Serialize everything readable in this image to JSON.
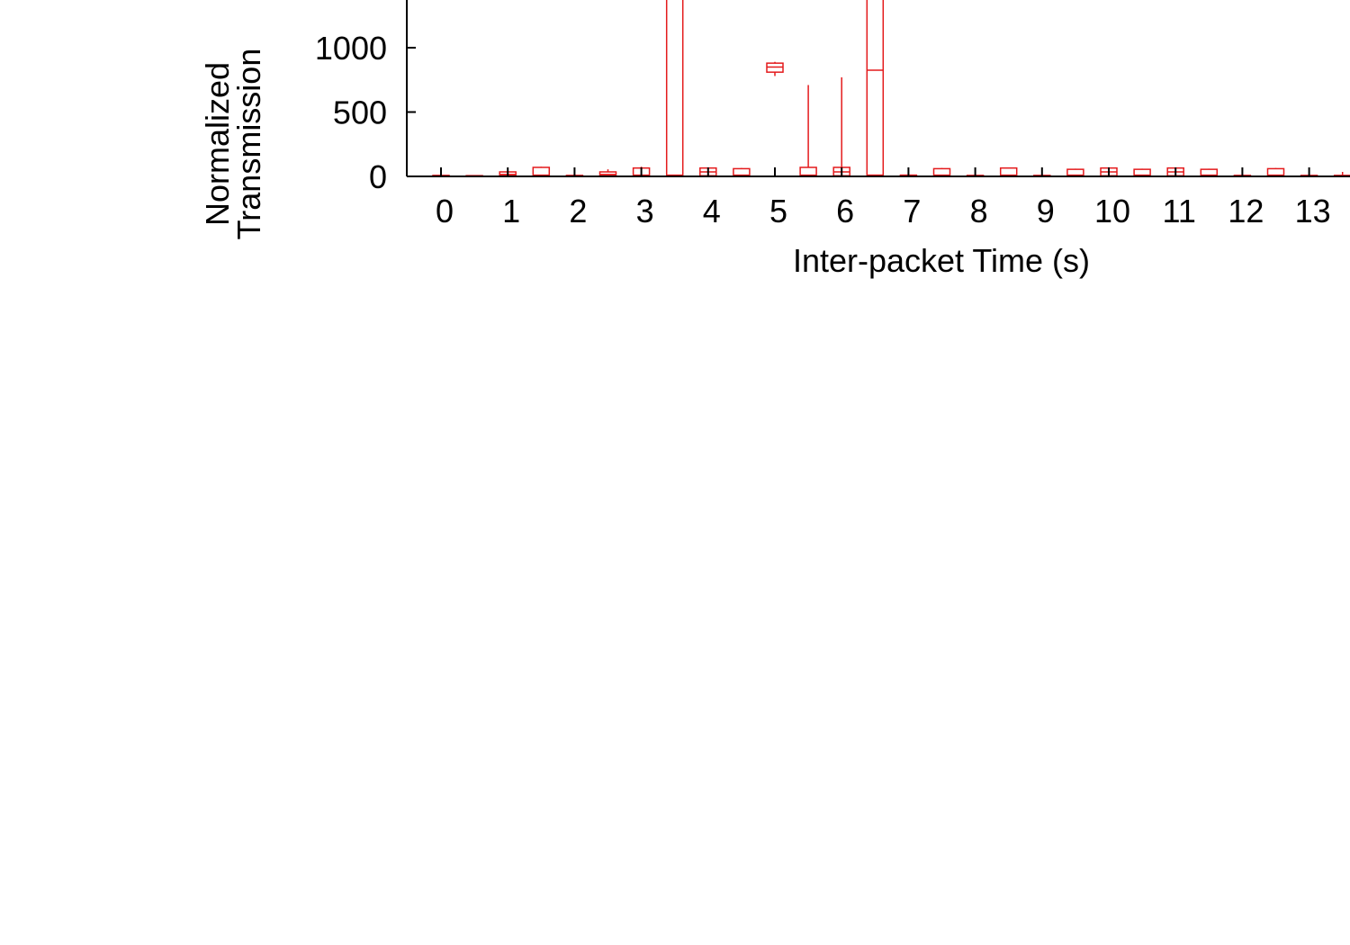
{
  "chart_data": {
    "type": "boxplot",
    "xlabel": "Inter-packet Time (s)",
    "ylabel_lines": [
      "Normalized",
      "Transmission"
    ],
    "x_ticks": [
      0,
      1,
      2,
      3,
      4,
      5,
      6,
      7,
      8,
      9,
      10,
      11,
      12,
      13
    ],
    "y_ticks": [
      0,
      500,
      1000
    ],
    "ylim": [
      0,
      1400
    ],
    "xlim": [
      -0.6,
      13.6
    ],
    "colors": {
      "box": "#e41a1c",
      "axis": "#000000"
    },
    "series": [
      {
        "x": 0.0,
        "min": 0,
        "q1": 0,
        "median": 3,
        "q3": 8,
        "max": 12
      },
      {
        "x": 0.5,
        "min": 0,
        "q1": 0,
        "median": 3,
        "q3": 6,
        "max": 10
      },
      {
        "x": 1.0,
        "min": 0,
        "q1": 5,
        "median": 15,
        "q3": 35,
        "max": 40
      },
      {
        "x": 1.5,
        "min": 0,
        "q1": 5,
        "median": 10,
        "q3": 70,
        "max": 75
      },
      {
        "x": 2.0,
        "min": 0,
        "q1": 0,
        "median": 3,
        "q3": 8,
        "max": 12
      },
      {
        "x": 2.5,
        "min": 0,
        "q1": 5,
        "median": 15,
        "q3": 35,
        "max": 55
      },
      {
        "x": 3.0,
        "min": 0,
        "q1": 5,
        "median": 10,
        "q3": 65,
        "max": 75
      },
      {
        "x": 3.5,
        "min": 0,
        "q1": 5,
        "median": 10,
        "q3": 1400,
        "max": 1400
      },
      {
        "x": 4.0,
        "min": 0,
        "q1": 5,
        "median": 35,
        "q3": 65,
        "max": 70
      },
      {
        "x": 4.5,
        "min": 0,
        "q1": 5,
        "median": 10,
        "q3": 60,
        "max": 65
      },
      {
        "x": 5.0,
        "min": 780,
        "q1": 810,
        "median": 850,
        "q3": 880,
        "max": 890
      },
      {
        "x": 5.5,
        "min": 0,
        "q1": 5,
        "median": 10,
        "q3": 70,
        "max": 710
      },
      {
        "x": 6.0,
        "min": 0,
        "q1": 5,
        "median": 35,
        "q3": 70,
        "max": 770
      },
      {
        "x": 6.5,
        "min": 0,
        "q1": 10,
        "median": 825,
        "q3": 1400,
        "max": 1400
      },
      {
        "x": 7.0,
        "min": 0,
        "q1": 0,
        "median": 3,
        "q3": 10,
        "max": 15
      },
      {
        "x": 7.5,
        "min": 0,
        "q1": 5,
        "median": 10,
        "q3": 60,
        "max": 65
      },
      {
        "x": 8.0,
        "min": 0,
        "q1": 0,
        "median": 3,
        "q3": 8,
        "max": 12
      },
      {
        "x": 8.5,
        "min": 0,
        "q1": 5,
        "median": 10,
        "q3": 65,
        "max": 70
      },
      {
        "x": 9.0,
        "min": 0,
        "q1": 0,
        "median": 3,
        "q3": 8,
        "max": 12
      },
      {
        "x": 9.5,
        "min": 0,
        "q1": 5,
        "median": 10,
        "q3": 55,
        "max": 60
      },
      {
        "x": 10.0,
        "min": 0,
        "q1": 5,
        "median": 35,
        "q3": 65,
        "max": 70
      },
      {
        "x": 10.5,
        "min": 0,
        "q1": 5,
        "median": 10,
        "q3": 55,
        "max": 60
      },
      {
        "x": 11.0,
        "min": 0,
        "q1": 5,
        "median": 35,
        "q3": 65,
        "max": 70
      },
      {
        "x": 11.5,
        "min": 0,
        "q1": 5,
        "median": 10,
        "q3": 55,
        "max": 60
      },
      {
        "x": 12.0,
        "min": 0,
        "q1": 0,
        "median": 3,
        "q3": 8,
        "max": 12
      },
      {
        "x": 12.5,
        "min": 0,
        "q1": 5,
        "median": 10,
        "q3": 60,
        "max": 65
      },
      {
        "x": 13.0,
        "min": 0,
        "q1": 0,
        "median": 3,
        "q3": 8,
        "max": 12
      },
      {
        "x": 13.5,
        "min": 0,
        "q1": 0,
        "median": 3,
        "q3": 8,
        "max": 35
      }
    ]
  }
}
